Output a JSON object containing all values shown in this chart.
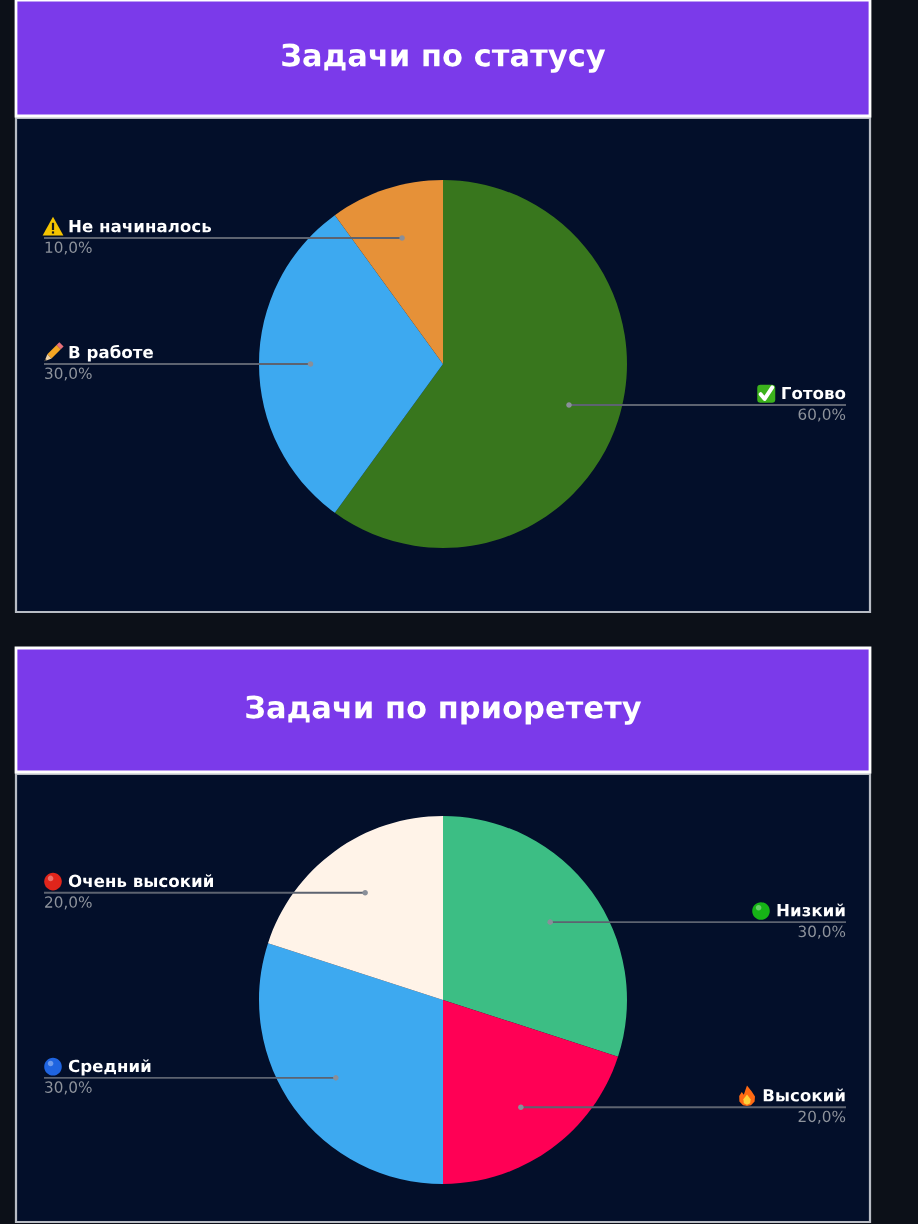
{
  "chart_data": [
    {
      "type": "pie",
      "title": "Задачи по статусу",
      "categories": [
        "Готово",
        "В работе",
        "Не начиналось"
      ],
      "values": [
        60,
        30,
        10
      ],
      "colors": [
        "#38761d",
        "#3da9f0",
        "#e69138"
      ],
      "value_labels": [
        "60,0%",
        "30,0%",
        "10,0%"
      ]
    },
    {
      "type": "pie",
      "title": "Задачи по приоретету",
      "categories": [
        "Низкий",
        "Высокий",
        "Средний",
        "Очень высокий"
      ],
      "values": [
        30,
        20,
        30,
        20
      ],
      "colors": [
        "#3cbe84",
        "#ff0055",
        "#3da9f0",
        "#fff3e8"
      ],
      "value_labels": [
        "30,0%",
        "20,0%",
        "30,0%",
        "20,0%"
      ]
    }
  ]
}
